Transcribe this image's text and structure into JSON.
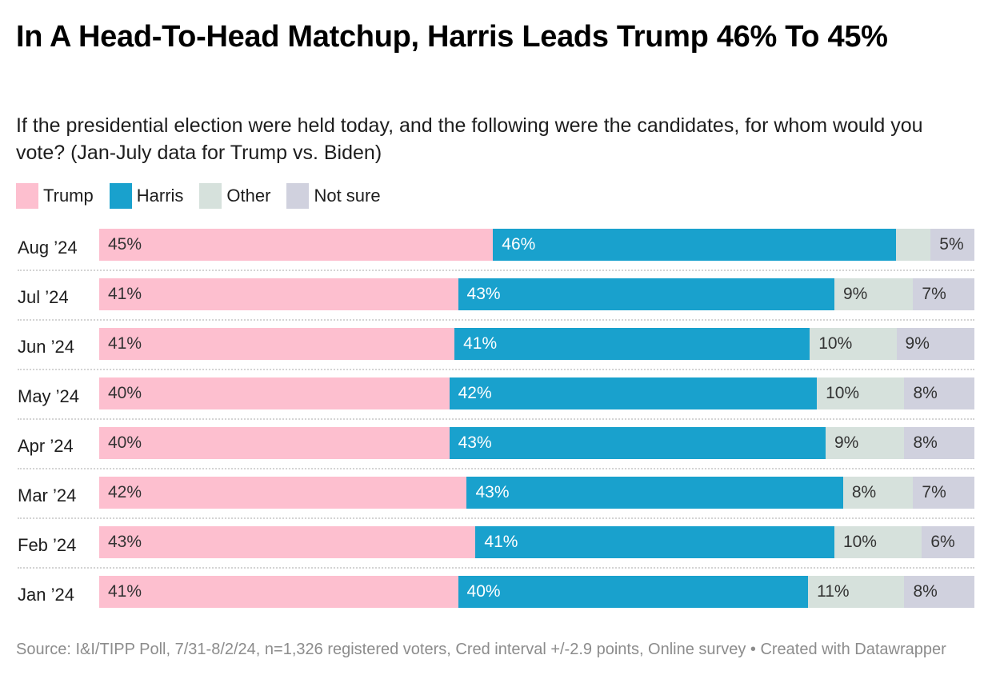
{
  "title": "In A Head-To-Head Matchup, Harris Leads Trump 46% To 45%",
  "subtitle": "If the presidential election were held today, and the following were the candidates, for whom would you vote? (Jan-July data for Trump vs. Biden)",
  "source": "Source: I&I/TIPP Poll, 7/31-8/2/24, n=1,326 registered voters, Cred interval +/-2.9 points, Online survey • Created with Datawrapper",
  "chart_data": {
    "type": "bar",
    "orientation": "horizontal",
    "stacked": true,
    "title": "In A Head-To-Head Matchup, Harris Leads Trump 46% To 45%",
    "subtitle": "If the presidential election were held today, and the following were the candidates, for whom would you vote? (Jan-July data for Trump vs. Biden)",
    "xlabel": "",
    "ylabel": "",
    "unit": "%",
    "xlim": [
      0,
      100
    ],
    "grid": false,
    "legend_position": "top-left",
    "categories": [
      "Aug ’24",
      "Jul ’24",
      "Jun ’24",
      "May ’24",
      "Apr ’24",
      "Mar ’24",
      "Feb ’24",
      "Jan ’24"
    ],
    "series": [
      {
        "name": "Trump",
        "color": "#fdbfcf",
        "values": [
          45,
          41,
          41,
          40,
          40,
          42,
          43,
          41
        ],
        "labels": [
          "45%",
          "41%",
          "41%",
          "40%",
          "40%",
          "42%",
          "43%",
          "41%"
        ]
      },
      {
        "name": "Harris",
        "color": "#19a1cd",
        "values": [
          46,
          43,
          41,
          42,
          43,
          43,
          41,
          40
        ],
        "labels": [
          "46%",
          "43%",
          "41%",
          "42%",
          "43%",
          "43%",
          "41%",
          "40%"
        ]
      },
      {
        "name": "Other",
        "color": "#d6e1dc",
        "values": [
          4,
          9,
          10,
          10,
          9,
          8,
          10,
          11
        ],
        "labels": [
          "",
          "9%",
          "10%",
          "10%",
          "9%",
          "8%",
          "10%",
          "11%"
        ]
      },
      {
        "name": "Not sure",
        "color": "#d0d1de",
        "values": [
          5,
          7,
          9,
          8,
          8,
          7,
          6,
          8
        ],
        "labels": [
          "5%",
          "7%",
          "9%",
          "8%",
          "8%",
          "7%",
          "6%",
          "8%"
        ]
      }
    ]
  }
}
